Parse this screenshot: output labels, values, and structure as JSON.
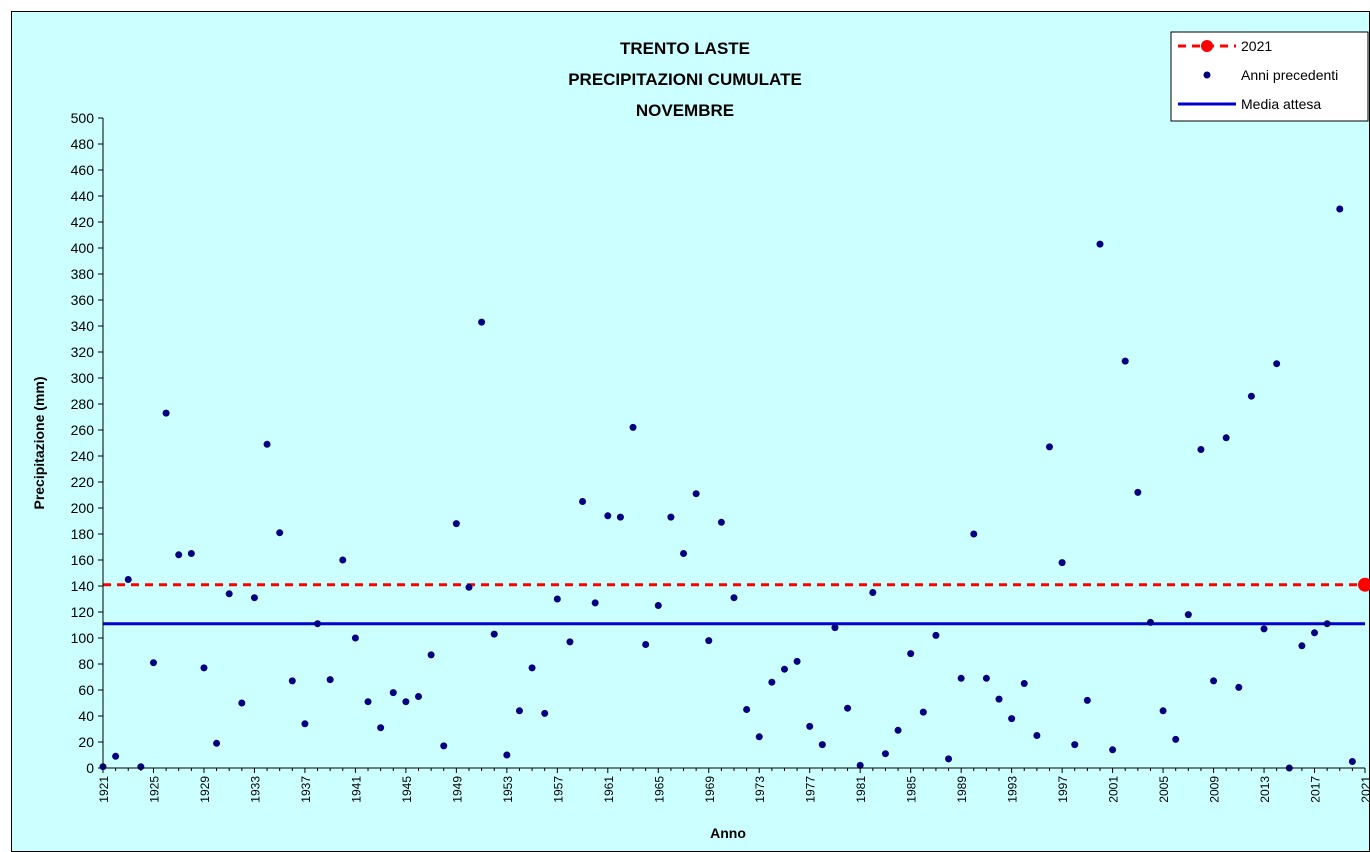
{
  "chart_data": {
    "type": "scatter",
    "title_lines": [
      "TRENTO LASTE",
      "PRECIPITAZIONI CUMULATE",
      "NOVEMBRE"
    ],
    "xlabel": "Anno",
    "ylabel": "Precipitazione (mm)",
    "ylim": [
      0,
      500
    ],
    "xlim": [
      1921,
      2021
    ],
    "y_ticks": [
      0,
      20,
      40,
      60,
      80,
      100,
      120,
      140,
      160,
      180,
      200,
      220,
      240,
      260,
      280,
      300,
      320,
      340,
      360,
      380,
      400,
      420,
      440,
      460,
      480,
      500
    ],
    "x_ticks": [
      1921,
      1925,
      1929,
      1933,
      1937,
      1941,
      1945,
      1949,
      1953,
      1957,
      1961,
      1965,
      1969,
      1973,
      1977,
      1981,
      1985,
      1989,
      1993,
      1997,
      2001,
      2005,
      2009,
      2013,
      2017,
      2021
    ],
    "grid": false,
    "legend_position": "top-right",
    "current_year": {
      "name": "2021",
      "x": 2021,
      "value": 141,
      "color": "#ff0000"
    },
    "expected_mean": {
      "name": "Media attesa",
      "value": 111,
      "color": "#0000cc"
    },
    "series": [
      {
        "name": "Anni precedenti",
        "color": "#000080",
        "points": [
          [
            1921,
            1
          ],
          [
            1922,
            9
          ],
          [
            1923,
            145
          ],
          [
            1924,
            1
          ],
          [
            1925,
            81
          ],
          [
            1926,
            273
          ],
          [
            1927,
            164
          ],
          [
            1928,
            165
          ],
          [
            1929,
            77
          ],
          [
            1930,
            19
          ],
          [
            1931,
            134
          ],
          [
            1932,
            50
          ],
          [
            1933,
            131
          ],
          [
            1934,
            249
          ],
          [
            1935,
            181
          ],
          [
            1936,
            67
          ],
          [
            1937,
            34
          ],
          [
            1938,
            111
          ],
          [
            1939,
            68
          ],
          [
            1940,
            160
          ],
          [
            1941,
            100
          ],
          [
            1942,
            51
          ],
          [
            1943,
            31
          ],
          [
            1944,
            58
          ],
          [
            1945,
            51
          ],
          [
            1946,
            55
          ],
          [
            1947,
            87
          ],
          [
            1948,
            17
          ],
          [
            1949,
            188
          ],
          [
            1950,
            139
          ],
          [
            1951,
            343
          ],
          [
            1952,
            103
          ],
          [
            1953,
            10
          ],
          [
            1954,
            44
          ],
          [
            1955,
            77
          ],
          [
            1956,
            42
          ],
          [
            1957,
            130
          ],
          [
            1958,
            97
          ],
          [
            1959,
            205
          ],
          [
            1960,
            127
          ],
          [
            1961,
            194
          ],
          [
            1962,
            193
          ],
          [
            1963,
            262
          ],
          [
            1964,
            95
          ],
          [
            1965,
            125
          ],
          [
            1966,
            193
          ],
          [
            1967,
            165
          ],
          [
            1968,
            211
          ],
          [
            1969,
            98
          ],
          [
            1970,
            189
          ],
          [
            1971,
            131
          ],
          [
            1972,
            45
          ],
          [
            1973,
            24
          ],
          [
            1974,
            66
          ],
          [
            1975,
            76
          ],
          [
            1976,
            82
          ],
          [
            1977,
            32
          ],
          [
            1978,
            18
          ],
          [
            1979,
            108
          ],
          [
            1980,
            46
          ],
          [
            1981,
            2
          ],
          [
            1982,
            135
          ],
          [
            1983,
            11
          ],
          [
            1984,
            29
          ],
          [
            1985,
            88
          ],
          [
            1986,
            43
          ],
          [
            1987,
            102
          ],
          [
            1988,
            7
          ],
          [
            1989,
            69
          ],
          [
            1990,
            180
          ],
          [
            1991,
            69
          ],
          [
            1992,
            53
          ],
          [
            1993,
            38
          ],
          [
            1994,
            65
          ],
          [
            1995,
            25
          ],
          [
            1996,
            247
          ],
          [
            1997,
            158
          ],
          [
            1998,
            18
          ],
          [
            1999,
            52
          ],
          [
            2000,
            403
          ],
          [
            2001,
            14
          ],
          [
            2002,
            313
          ],
          [
            2003,
            212
          ],
          [
            2004,
            112
          ],
          [
            2005,
            44
          ],
          [
            2006,
            22
          ],
          [
            2007,
            118
          ],
          [
            2008,
            245
          ],
          [
            2009,
            67
          ],
          [
            2010,
            254
          ],
          [
            2011,
            62
          ],
          [
            2012,
            286
          ],
          [
            2013,
            107
          ],
          [
            2014,
            311
          ],
          [
            2015,
            0
          ],
          [
            2016,
            94
          ],
          [
            2017,
            104
          ],
          [
            2018,
            111
          ],
          [
            2019,
            430
          ],
          [
            2020,
            5
          ]
        ]
      }
    ]
  }
}
